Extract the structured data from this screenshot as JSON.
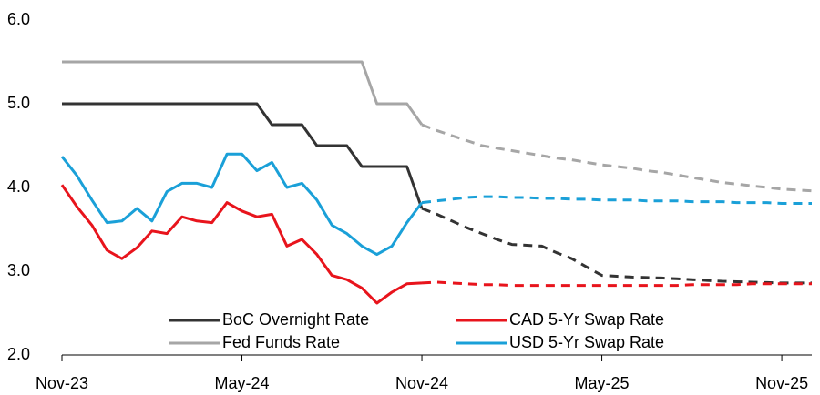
{
  "chart_data": {
    "type": "line",
    "categories": [
      "Nov-23",
      null,
      null,
      null,
      null,
      null,
      null,
      null,
      null,
      null,
      null,
      null,
      "May-24",
      null,
      null,
      null,
      null,
      null,
      null,
      null,
      null,
      null,
      null,
      null,
      "Nov-24",
      null,
      null,
      null,
      null,
      null,
      null,
      null,
      null,
      null,
      null,
      null,
      "May-25",
      null,
      null,
      null,
      null,
      null,
      null,
      null,
      null,
      null,
      null,
      null,
      "Nov-25",
      null,
      null
    ],
    "forecast_from": 24,
    "series": [
      {
        "name": "BoC Overnight Rate",
        "color": "#333333",
        "values": [
          5,
          5,
          5,
          5,
          5,
          5,
          5,
          5,
          5,
          5,
          5,
          5,
          5,
          5,
          4.75,
          4.75,
          4.75,
          4.5,
          4.5,
          4.5,
          4.25,
          4.25,
          4.25,
          4.25,
          3.75,
          3.68,
          3.6,
          3.52,
          3.45,
          3.38,
          3.32,
          3.31,
          3.3,
          3.22,
          3.15,
          3.05,
          2.95,
          2.94,
          2.93,
          2.925,
          2.92,
          2.91,
          2.9,
          2.89,
          2.88,
          2.875,
          2.87,
          2.865,
          2.86,
          2.86,
          2.86
        ]
      },
      {
        "name": "Fed Funds Rate",
        "color": "#a6a6a6",
        "values": [
          5.5,
          5.5,
          5.5,
          5.5,
          5.5,
          5.5,
          5.5,
          5.5,
          5.5,
          5.5,
          5.5,
          5.5,
          5.5,
          5.5,
          5.5,
          5.5,
          5.5,
          5.5,
          5.5,
          5.5,
          5.5,
          5,
          5,
          5,
          4.75,
          4.68,
          4.62,
          4.56,
          4.5,
          4.47,
          4.44,
          4.41,
          4.38,
          4.35,
          4.33,
          4.3,
          4.27,
          4.25,
          4.23,
          4.2,
          4.18,
          4.15,
          4.12,
          4.09,
          4.06,
          4.04,
          4.02,
          4,
          3.98,
          3.97,
          3.96
        ]
      },
      {
        "name": "CAD 5-Yr Swap Rate",
        "color": "#e8141c",
        "values": [
          4.03,
          3.77,
          3.55,
          3.25,
          3.15,
          3.28,
          3.48,
          3.45,
          3.65,
          3.6,
          3.58,
          3.82,
          3.72,
          3.65,
          3.68,
          3.3,
          3.38,
          3.2,
          2.95,
          2.9,
          2.8,
          2.62,
          2.75,
          2.85,
          2.86,
          2.87,
          2.86,
          2.85,
          2.84,
          2.84,
          2.83,
          2.83,
          2.83,
          2.83,
          2.83,
          2.83,
          2.83,
          2.83,
          2.83,
          2.83,
          2.83,
          2.83,
          2.84,
          2.84,
          2.84,
          2.84,
          2.85,
          2.85,
          2.85,
          2.85,
          2.85
        ]
      },
      {
        "name": "USD 5-Yr Swap Rate",
        "color": "#1aa0d8",
        "values": [
          4.37,
          4.14,
          3.85,
          3.58,
          3.6,
          3.75,
          3.6,
          3.95,
          4.05,
          4.05,
          4,
          4.4,
          4.4,
          4.2,
          4.3,
          4,
          4.05,
          3.85,
          3.55,
          3.45,
          3.3,
          3.2,
          3.3,
          3.58,
          3.82,
          3.84,
          3.86,
          3.88,
          3.89,
          3.89,
          3.88,
          3.88,
          3.87,
          3.87,
          3.86,
          3.86,
          3.85,
          3.85,
          3.85,
          3.84,
          3.84,
          3.84,
          3.83,
          3.83,
          3.83,
          3.82,
          3.82,
          3.82,
          3.81,
          3.81,
          3.81
        ]
      }
    ],
    "ylim": [
      2,
      6
    ],
    "yticks": [
      {
        "value": 2,
        "label": "2.0"
      },
      {
        "value": 3,
        "label": "3.0"
      },
      {
        "value": 4,
        "label": "4.0"
      },
      {
        "value": 5,
        "label": "5.0"
      },
      {
        "value": 6,
        "label": "6.0"
      }
    ]
  }
}
